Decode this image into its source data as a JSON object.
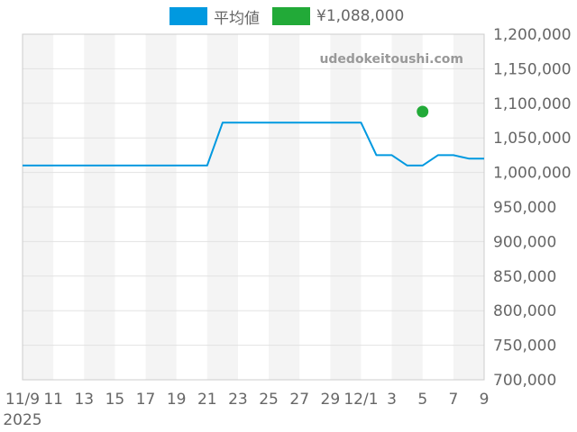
{
  "legend": {
    "average_label": "平均値",
    "price_label": "¥1,088,000"
  },
  "watermark": "udedokeitoushi.com",
  "colors": {
    "average": "#0099e0",
    "price": "#22aa38",
    "stripe": "#f4f4f4",
    "grid": "#e2e2e2",
    "axis": "#cccccc"
  },
  "chart_data": {
    "type": "line",
    "ylim": [
      700000,
      1200000
    ],
    "yticks": [
      1200000,
      1150000,
      1100000,
      1050000,
      1000000,
      950000,
      900000,
      850000,
      800000,
      750000,
      700000
    ],
    "ytick_labels": [
      "1,200,000",
      "1,150,000",
      "1,100,000",
      "1,050,000",
      "1,000,000",
      "950,000",
      "900,000",
      "850,000",
      "800,000",
      "750,000",
      "700,000"
    ],
    "x_dates": [
      "2025-11-09",
      "2025-11-10",
      "2025-11-11",
      "2025-11-12",
      "2025-11-13",
      "2025-11-14",
      "2025-11-15",
      "2025-11-16",
      "2025-11-17",
      "2025-11-18",
      "2025-11-19",
      "2025-11-20",
      "2025-11-21",
      "2025-11-22",
      "2025-11-23",
      "2025-11-24",
      "2025-11-25",
      "2025-11-26",
      "2025-11-27",
      "2025-11-28",
      "2025-11-29",
      "2025-11-30",
      "2025-12-01",
      "2025-12-02",
      "2025-12-03",
      "2025-12-04",
      "2025-12-05",
      "2025-12-06",
      "2025-12-07",
      "2025-12-08",
      "2025-12-09"
    ],
    "xtick_labels": [
      "11/9",
      "11",
      "13",
      "15",
      "17",
      "19",
      "21",
      "23",
      "25",
      "27",
      "29",
      "12/1",
      "3",
      "5",
      "7",
      "9"
    ],
    "xtick_year": "2025",
    "series": [
      {
        "name": "平均値",
        "values": [
          1010000,
          1010000,
          1010000,
          1010000,
          1010000,
          1010000,
          1010000,
          1010000,
          1010000,
          1010000,
          1010000,
          1010000,
          1010000,
          1072000,
          1072000,
          1072000,
          1072000,
          1072000,
          1072000,
          1072000,
          1072000,
          1072000,
          1072000,
          1025000,
          1025000,
          1010000,
          1010000,
          1025000,
          1025000,
          1020000,
          1020000
        ]
      },
      {
        "name": "¥1,088,000",
        "points": [
          {
            "x": "2025-12-05",
            "y": 1088000
          }
        ]
      }
    ],
    "grid": true,
    "legend_position": "top"
  }
}
